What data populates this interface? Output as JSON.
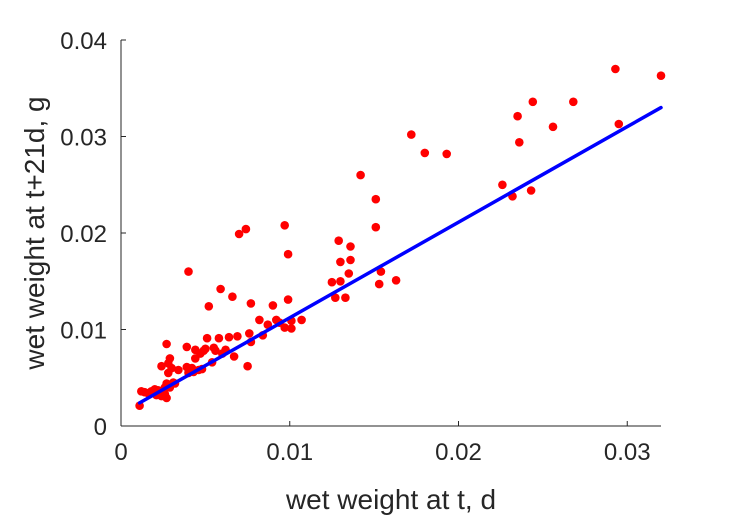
{
  "chart_data": {
    "type": "scatter",
    "xlabel": "wet weight at t, d",
    "ylabel": "wet weight at t+21d, g",
    "xlim": [
      0,
      0.032
    ],
    "ylim": [
      0,
      0.04
    ],
    "xticks": [
      0,
      0.01,
      0.02,
      0.03
    ],
    "xtick_labels": [
      "0",
      "0.01",
      "0.02",
      "0.03"
    ],
    "yticks": [
      0,
      0.01,
      0.02,
      0.03,
      0.04
    ],
    "ytick_labels": [
      "0",
      "0.01",
      "0.02",
      "0.03",
      "0.04"
    ],
    "grid": false,
    "colors": {
      "points": "#ff0000",
      "fit_line": "#0000ff",
      "axes": "#262626"
    },
    "series": [
      {
        "type": "scatter",
        "points": [
          [
            0.0011,
            0.0021
          ],
          [
            0.0012,
            0.0036
          ],
          [
            0.0014,
            0.0035
          ],
          [
            0.0016,
            0.0034
          ],
          [
            0.0018,
            0.0036
          ],
          [
            0.0019,
            0.0035
          ],
          [
            0.002,
            0.0038
          ],
          [
            0.0021,
            0.0032
          ],
          [
            0.0022,
            0.0037
          ],
          [
            0.0023,
            0.0034
          ],
          [
            0.0024,
            0.0031
          ],
          [
            0.0024,
            0.0062
          ],
          [
            0.0025,
            0.0036
          ],
          [
            0.0026,
            0.004
          ],
          [
            0.0026,
            0.0033
          ],
          [
            0.0027,
            0.0029
          ],
          [
            0.0027,
            0.0044
          ],
          [
            0.0027,
            0.0085
          ],
          [
            0.0028,
            0.0055
          ],
          [
            0.0028,
            0.0065
          ],
          [
            0.0029,
            0.007
          ],
          [
            0.0029,
            0.004
          ],
          [
            0.003,
            0.006
          ],
          [
            0.0031,
            0.0045
          ],
          [
            0.0032,
            0.0044
          ],
          [
            0.0034,
            0.0058
          ],
          [
            0.0039,
            0.0082
          ],
          [
            0.0039,
            0.0061
          ],
          [
            0.004,
            0.0055
          ],
          [
            0.004,
            0.016
          ],
          [
            0.0042,
            0.006
          ],
          [
            0.0043,
            0.0056
          ],
          [
            0.0044,
            0.0079
          ],
          [
            0.0044,
            0.007
          ],
          [
            0.0046,
            0.0058
          ],
          [
            0.0047,
            0.0075
          ],
          [
            0.0048,
            0.0059
          ],
          [
            0.0049,
            0.0078
          ],
          [
            0.005,
            0.008
          ],
          [
            0.0051,
            0.0091
          ],
          [
            0.0052,
            0.0124
          ],
          [
            0.0054,
            0.0066
          ],
          [
            0.0055,
            0.0081
          ],
          [
            0.0056,
            0.0078
          ],
          [
            0.0058,
            0.0091
          ],
          [
            0.0059,
            0.0142
          ],
          [
            0.006,
            0.0075
          ],
          [
            0.0062,
            0.0079
          ],
          [
            0.0064,
            0.0092
          ],
          [
            0.0066,
            0.0134
          ],
          [
            0.0067,
            0.0072
          ],
          [
            0.0069,
            0.0093
          ],
          [
            0.007,
            0.0199
          ],
          [
            0.0074,
            0.0204
          ],
          [
            0.0075,
            0.0062
          ],
          [
            0.0076,
            0.0096
          ],
          [
            0.0077,
            0.0087
          ],
          [
            0.0077,
            0.0127
          ],
          [
            0.0082,
            0.011
          ],
          [
            0.0084,
            0.0094
          ],
          [
            0.0087,
            0.0105
          ],
          [
            0.009,
            0.0125
          ],
          [
            0.0092,
            0.011
          ],
          [
            0.0094,
            0.0107
          ],
          [
            0.0097,
            0.0208
          ],
          [
            0.0097,
            0.0102
          ],
          [
            0.0099,
            0.0131
          ],
          [
            0.0099,
            0.0178
          ],
          [
            0.0101,
            0.0101
          ],
          [
            0.0101,
            0.0109
          ],
          [
            0.0107,
            0.011
          ],
          [
            0.0125,
            0.0149
          ],
          [
            0.0127,
            0.0133
          ],
          [
            0.0129,
            0.0192
          ],
          [
            0.013,
            0.015
          ],
          [
            0.013,
            0.017
          ],
          [
            0.0133,
            0.0133
          ],
          [
            0.0135,
            0.0158
          ],
          [
            0.0136,
            0.0186
          ],
          [
            0.0136,
            0.0172
          ],
          [
            0.0142,
            0.026
          ],
          [
            0.0151,
            0.0235
          ],
          [
            0.0151,
            0.0206
          ],
          [
            0.0153,
            0.0147
          ],
          [
            0.0154,
            0.016
          ],
          [
            0.0163,
            0.0151
          ],
          [
            0.0172,
            0.0302
          ],
          [
            0.018,
            0.0283
          ],
          [
            0.0193,
            0.0282
          ],
          [
            0.0226,
            0.025
          ],
          [
            0.0232,
            0.0238
          ],
          [
            0.0235,
            0.0321
          ],
          [
            0.0236,
            0.0294
          ],
          [
            0.0243,
            0.0244
          ],
          [
            0.0244,
            0.0336
          ],
          [
            0.0256,
            0.031
          ],
          [
            0.0268,
            0.0336
          ],
          [
            0.0293,
            0.037
          ],
          [
            0.0295,
            0.0313
          ],
          [
            0.032,
            0.0363
          ]
        ]
      },
      {
        "type": "line",
        "points": [
          [
            0.0011,
            0.0024
          ],
          [
            0.032,
            0.033
          ]
        ]
      }
    ]
  }
}
